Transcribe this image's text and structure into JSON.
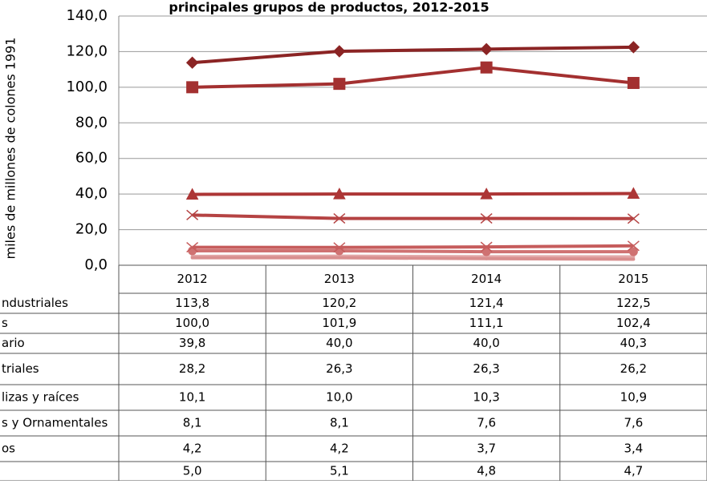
{
  "chart_data": {
    "type": "line",
    "title": "principales grupos de productos, 2012-2015",
    "y_label": "miles de millones de colones 1991",
    "categories": [
      "2012",
      "2013",
      "2014",
      "2015"
    ],
    "ylim": [
      0,
      140
    ],
    "yticks": [
      {
        "value": 0,
        "label": "0,0"
      },
      {
        "value": 20,
        "label": "20,0"
      },
      {
        "value": 40,
        "label": "40,0"
      },
      {
        "value": 60,
        "label": "60,0"
      },
      {
        "value": 80,
        "label": "80,0"
      },
      {
        "value": 100,
        "label": "100,0"
      },
      {
        "value": 120,
        "label": "120,0"
      },
      {
        "value": 140,
        "label": "140,0"
      }
    ],
    "grid": true,
    "series": [
      {
        "name": "ndustriales",
        "color": "#8b2424",
        "marker": "diamond",
        "values": [
          113.8,
          120.2,
          121.4,
          122.5
        ],
        "value_labels": [
          "113,8",
          "120,2",
          "121,4",
          "122,5"
        ]
      },
      {
        "name": "s",
        "color": "#a33030",
        "marker": "square",
        "values": [
          100.0,
          101.9,
          111.1,
          102.4
        ],
        "value_labels": [
          "100,0",
          "101,9",
          "111,1",
          "102,4"
        ]
      },
      {
        "name": "ario",
        "color": "#ad3636",
        "marker": "triangle",
        "values": [
          39.8,
          40.0,
          40.0,
          40.3
        ],
        "value_labels": [
          "39,8",
          "40,0",
          "40,0",
          "40,3"
        ]
      },
      {
        "name": "triales",
        "color": "#b54343",
        "marker": "x",
        "values": [
          28.2,
          26.3,
          26.3,
          26.2
        ],
        "value_labels": [
          "28,2",
          "26,3",
          "26,3",
          "26,2"
        ]
      },
      {
        "name": "lizas y raíces",
        "color": "#c65c5c",
        "marker": "x",
        "values": [
          10.1,
          10.0,
          10.3,
          10.9
        ],
        "value_labels": [
          "10,1",
          "10,0",
          "10,3",
          "10,9"
        ]
      },
      {
        "name": "s y Ornamentales",
        "color": "#cf7272",
        "marker": "circle",
        "values": [
          8.1,
          8.1,
          7.6,
          7.6
        ],
        "value_labels": [
          "8,1",
          "8,1",
          "7,6",
          "7,6"
        ]
      },
      {
        "name": "os",
        "color": "#d98f8f",
        "marker": "none",
        "values": [
          4.2,
          4.2,
          3.7,
          3.4
        ],
        "value_labels": [
          "4,2",
          "4,2",
          "3,7",
          "3,4"
        ]
      },
      {
        "name": null,
        "color": "#e3a9a9",
        "marker": "none",
        "values": [
          5.0,
          5.1,
          4.8,
          4.7
        ],
        "value_labels": [
          "5,0",
          "5,1",
          "4,8",
          "4,7"
        ]
      }
    ]
  }
}
